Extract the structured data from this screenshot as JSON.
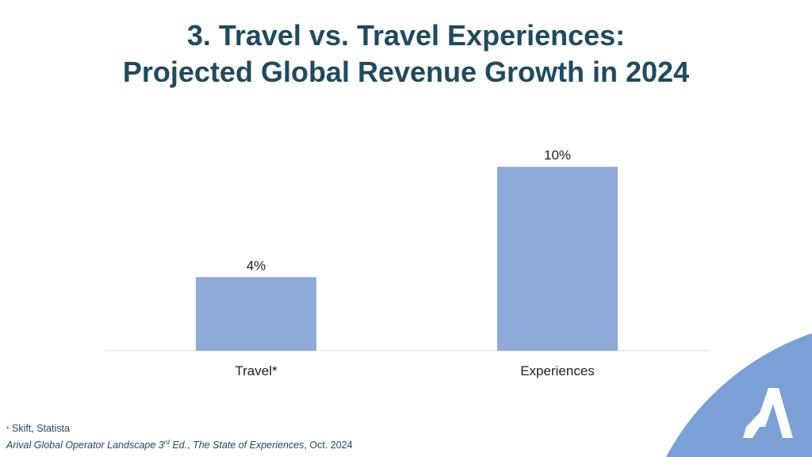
{
  "title": {
    "line1": "3. Travel vs. Travel Experiences:",
    "line2": "Projected Global Revenue Growth in 2024"
  },
  "chart_data": {
    "type": "bar",
    "categories": [
      "Travel*",
      "Experiences"
    ],
    "values": [
      4,
      10
    ],
    "value_labels": [
      "4%",
      "10%"
    ],
    "unit": "%",
    "ylim": [
      0,
      11
    ],
    "grid": false,
    "legend": "none",
    "bar_color": "#8eabd9"
  },
  "footnotes": {
    "source_marker": "*",
    "source_text": " Skift, Statista",
    "citation_part1": "Arival Global Operator Landscape 3",
    "citation_sup": "rd",
    "citation_part2": " Ed.",
    "citation_part3": ", ",
    "citation_part4": "The State of Experiences",
    "citation_part5": ", Oct. 2024"
  },
  "colors": {
    "title": "#1f4a5f",
    "bar": "#8eabd9",
    "axis": "#d9d9d9",
    "corner_shape": "#7aa0d6",
    "logo": "#ffffff"
  },
  "logo": {
    "icon": "arival-a-logo-icon"
  }
}
